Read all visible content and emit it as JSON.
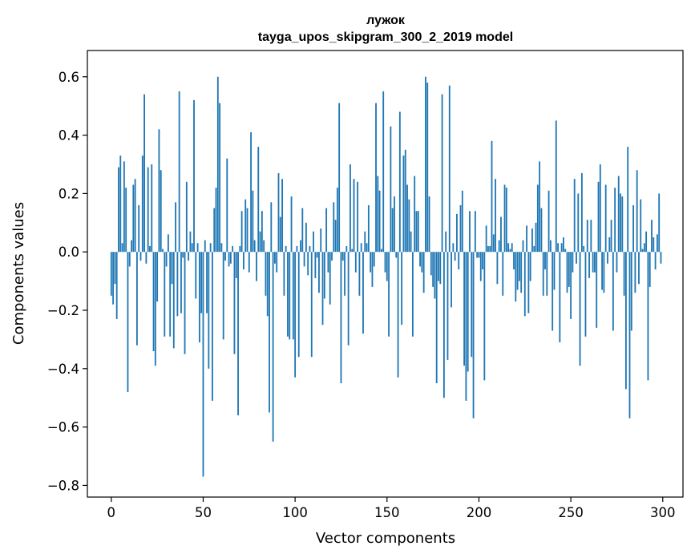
{
  "chart_data": {
    "type": "bar",
    "title": "лужок",
    "subtitle": "tayga_upos_skipgram_300_2_2019 model",
    "xlabel": "Vector components",
    "ylabel": "Components values",
    "xlim": [
      -13,
      311
    ],
    "ylim": [
      -0.84,
      0.69
    ],
    "xticks": [
      0,
      50,
      100,
      150,
      200,
      250,
      300
    ],
    "xtick_labels": [
      "0",
      "50",
      "100",
      "150",
      "200",
      "250",
      "300"
    ],
    "yticks": [
      -0.8,
      -0.6,
      -0.4,
      -0.2,
      0.0,
      0.2,
      0.4,
      0.6
    ],
    "ytick_labels": [
      "−0.8",
      "−0.6",
      "−0.4",
      "−0.2",
      "0.0",
      "0.2",
      "0.4",
      "0.6"
    ],
    "bar_color": "#1f77b4",
    "grid": false,
    "values": [
      -0.15,
      -0.18,
      -0.11,
      -0.23,
      0.29,
      0.33,
      0.03,
      0.31,
      0.22,
      -0.48,
      -0.05,
      0.04,
      0.23,
      0.25,
      -0.32,
      0.16,
      -0.03,
      0.33,
      0.54,
      -0.04,
      0.29,
      0.02,
      0.3,
      -0.34,
      -0.39,
      -0.17,
      0.42,
      0.28,
      0.01,
      -0.29,
      -0.05,
      0.06,
      -0.29,
      -0.11,
      -0.33,
      0.17,
      -0.22,
      0.55,
      -0.21,
      -0.02,
      -0.35,
      0.24,
      -0.03,
      0.07,
      0.03,
      0.52,
      -0.16,
      0.03,
      -0.31,
      -0.21,
      -0.77,
      0.04,
      -0.21,
      -0.4,
      0.03,
      -0.51,
      0.15,
      0.22,
      0.6,
      0.51,
      0.03,
      -0.3,
      -0.03,
      0.32,
      -0.05,
      -0.04,
      0.02,
      -0.35,
      -0.09,
      -0.56,
      0.02,
      0.14,
      -0.06,
      0.18,
      0.15,
      -0.07,
      0.41,
      0.21,
      0.04,
      -0.1,
      0.36,
      0.07,
      0.14,
      0.04,
      -0.15,
      -0.22,
      -0.55,
      0.17,
      -0.65,
      -0.04,
      -0.07,
      0.27,
      0.12,
      0.25,
      -0.15,
      0.02,
      -0.29,
      -0.3,
      0.19,
      -0.3,
      -0.43,
      0.02,
      -0.36,
      0.04,
      0.15,
      -0.05,
      0.1,
      -0.08,
      0.02,
      -0.36,
      0.07,
      -0.09,
      -0.02,
      -0.14,
      0.08,
      -0.25,
      -0.16,
      0.15,
      -0.07,
      -0.18,
      -0.03,
      0.17,
      0.11,
      0.22,
      0.51,
      -0.45,
      -0.03,
      -0.15,
      0.02,
      -0.32,
      0.3,
      0.01,
      0.25,
      -0.07,
      0.24,
      -0.15,
      0.03,
      -0.28,
      0.07,
      0.03,
      0.16,
      -0.07,
      -0.12,
      -0.05,
      0.51,
      0.26,
      0.21,
      0.01,
      0.55,
      -0.07,
      -0.1,
      -0.29,
      0.43,
      0.15,
      0.19,
      -0.02,
      -0.43,
      0.48,
      -0.25,
      0.33,
      0.35,
      0.23,
      0.18,
      0.07,
      -0.29,
      0.26,
      0.14,
      0.14,
      -0.05,
      -0.07,
      -0.14,
      0.6,
      0.58,
      0.19,
      -0.08,
      -0.12,
      -0.16,
      -0.45,
      -0.1,
      -0.11,
      0.54,
      -0.5,
      0.07,
      -0.37,
      0.57,
      -0.19,
      0.03,
      -0.03,
      0.13,
      -0.06,
      0.16,
      0.21,
      -0.39,
      -0.51,
      -0.41,
      0.14,
      -0.36,
      -0.57,
      0.14,
      -0.02,
      -0.02,
      -0.1,
      -0.06,
      -0.44,
      0.09,
      0.02,
      0.02,
      0.38,
      0.06,
      0.25,
      -0.11,
      0.04,
      0.12,
      -0.15,
      0.23,
      0.22,
      0.03,
      0.01,
      0.03,
      -0.06,
      -0.17,
      -0.13,
      -0.1,
      -0.14,
      0.04,
      -0.22,
      0.09,
      -0.21,
      -0.1,
      0.08,
      0.02,
      0.1,
      0.23,
      0.31,
      0.15,
      -0.15,
      -0.06,
      -0.15,
      0.21,
      0.04,
      -0.27,
      -0.13,
      0.45,
      0.03,
      -0.31,
      0.03,
      0.05,
      0.01,
      -0.14,
      -0.12,
      -0.23,
      -0.07,
      0.25,
      -0.04,
      0.2,
      -0.39,
      0.27,
      0.02,
      -0.29,
      0.11,
      -0.09,
      0.11,
      -0.07,
      -0.07,
      -0.26,
      0.24,
      0.3,
      -0.13,
      -0.14,
      0.23,
      -0.04,
      0.05,
      0.11,
      -0.27,
      0.22,
      -0.07,
      0.26,
      0.2,
      0.19,
      -0.15,
      -0.47,
      0.36,
      -0.57,
      -0.27,
      0.16,
      -0.14,
      0.28,
      -0.11,
      0.18,
      0.01,
      0.03,
      0.07,
      -0.44,
      -0.12,
      0.11,
      0.05,
      -0.06,
      0.06,
      0.2,
      -0.04
    ]
  }
}
